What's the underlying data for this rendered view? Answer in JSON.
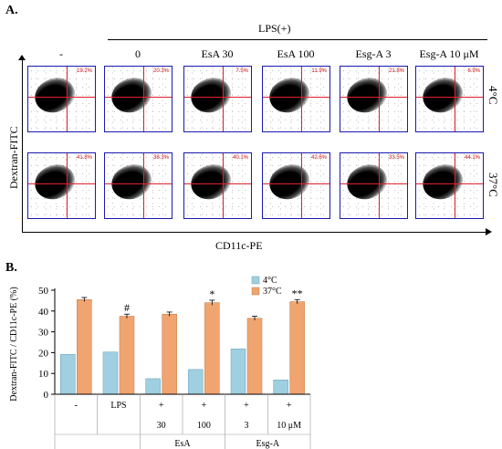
{
  "panelA": {
    "label": "A.",
    "lps_label": "LPS(+)",
    "columns": [
      "-",
      "0",
      "EsA 30",
      "EsA 100",
      "Esg-A 3",
      "Esg-A 10 μM"
    ],
    "rows": [
      {
        "temp": "4°C",
        "percents": [
          "19.2%",
          "20.3%",
          "7.5%",
          "11.9%",
          "21.8%",
          "6.9%"
        ]
      },
      {
        "temp": "37°C",
        "percents": [
          "41.8%",
          "38.3%",
          "40.1%",
          "42.6%",
          "33.5%",
          "44.1%"
        ]
      }
    ],
    "y_axis_label": "Dextran-FITC",
    "x_axis_label": "CD11c-PE"
  },
  "panelB": {
    "label": "B.",
    "colors": {
      "s4": "#9fcfe0",
      "s37": "#f0a470"
    }
  },
  "chart_data": {
    "type": "bar",
    "ylabel": "Dextran-FITC / CD11c-PE (%)",
    "ylim": [
      0,
      50
    ],
    "yticks": [
      0,
      10,
      20,
      30,
      40,
      50
    ],
    "grid": false,
    "legend": "top-center",
    "categories": [
      "-",
      "LPS",
      "+ 30",
      "+ 100",
      "+ 3",
      "+ 10 μM"
    ],
    "x_row1": [
      "-",
      "LPS",
      "+",
      "+",
      "+",
      "+"
    ],
    "x_row2": [
      "",
      "",
      "30",
      "100",
      "3",
      "10 μM"
    ],
    "x_groups": [
      {
        "label": "EsA",
        "spans": [
          2,
          3
        ]
      },
      {
        "label": "Esg-A",
        "spans": [
          4,
          5
        ]
      }
    ],
    "series": [
      {
        "name": "4°C",
        "values": [
          19.2,
          20.3,
          7.5,
          11.9,
          21.8,
          6.9
        ]
      },
      {
        "name": "37°C",
        "values": [
          45.5,
          37.5,
          38.5,
          44.0,
          36.5,
          44.5
        ],
        "errors": [
          1.0,
          1.0,
          1.0,
          1.2,
          1.0,
          1.0
        ]
      }
    ],
    "annotations": [
      "",
      "#",
      "",
      "*",
      "",
      "**"
    ]
  }
}
